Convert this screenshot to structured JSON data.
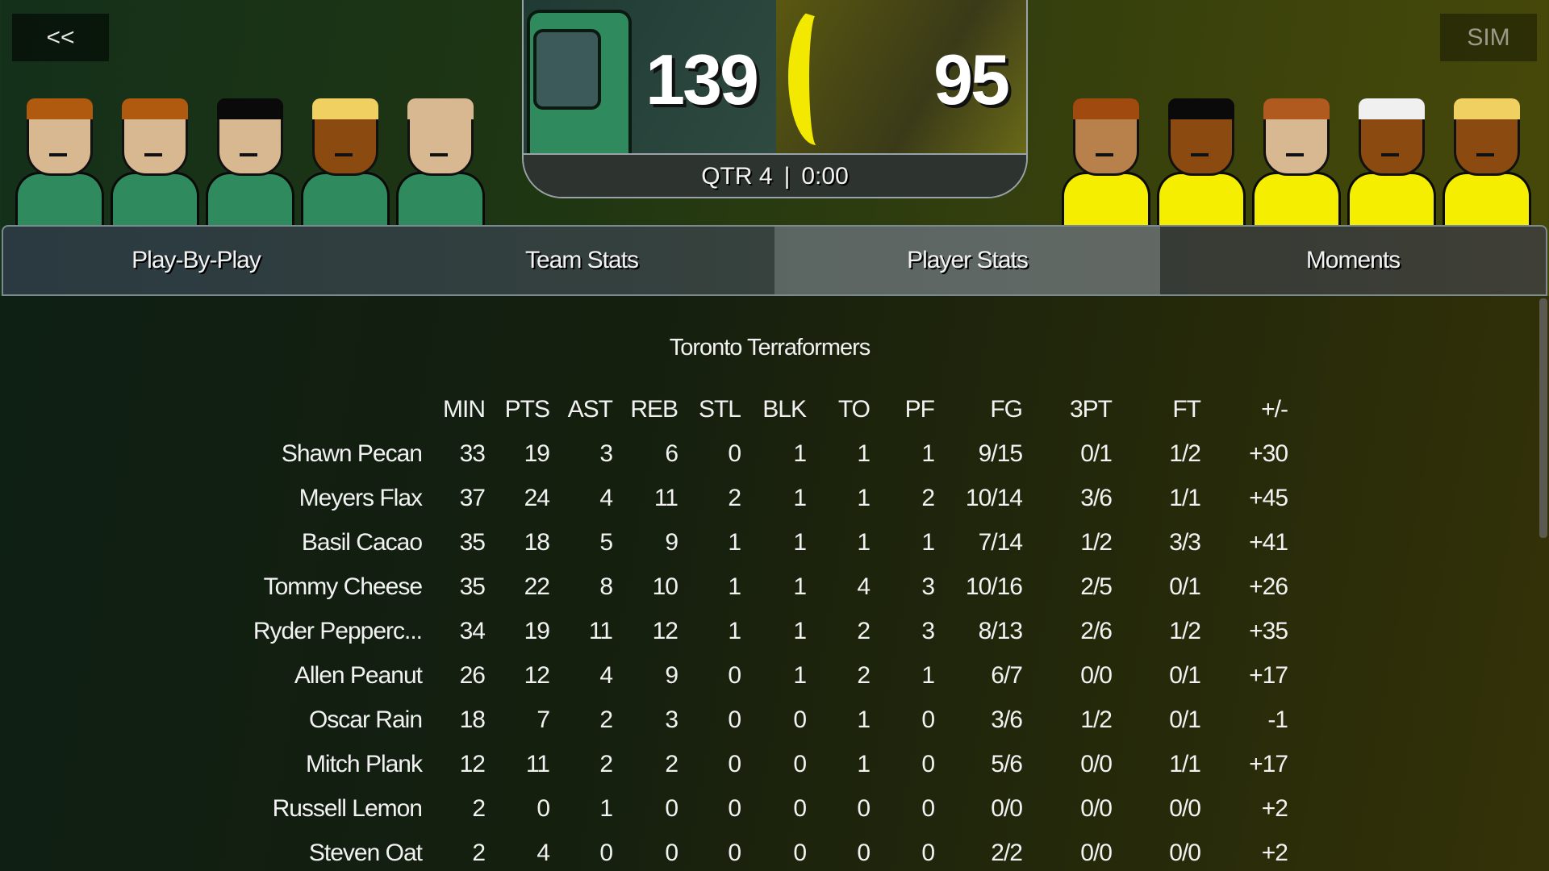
{
  "nav": {
    "back_label": "<<",
    "sim_label": "SIM"
  },
  "scoreboard": {
    "home_score": "139",
    "away_score": "95",
    "period": "QTR 4",
    "clock": "0:00",
    "separator": "|"
  },
  "tabs": [
    {
      "label": "Play-By-Play"
    },
    {
      "label": "Team Stats"
    },
    {
      "label": "Player Stats",
      "active": true
    },
    {
      "label": "Moments"
    }
  ],
  "colors": {
    "home_jersey": "#2f8a5e",
    "away_jersey": "#f5ee00"
  },
  "home_players": [
    {
      "skin": "#d8b890",
      "hair": "#b05a10"
    },
    {
      "skin": "#d8b890",
      "hair": "#b05a10"
    },
    {
      "skin": "#d8b890",
      "hair": "#0a0a0a"
    },
    {
      "skin": "#8a4a10",
      "hair": "#f0d060"
    },
    {
      "skin": "#d8b890",
      "hair": "#d8b890"
    }
  ],
  "away_players": [
    {
      "skin": "#b8804a",
      "hair": "#a04a10"
    },
    {
      "skin": "#8a4a10",
      "hair": "#0a0a0a"
    },
    {
      "skin": "#d8b890",
      "hair": "#b05a20"
    },
    {
      "skin": "#8a4a10",
      "hair": "#f0f0f0"
    },
    {
      "skin": "#8a4a10",
      "hair": "#f0d060"
    }
  ],
  "stats": {
    "team_name": "Toronto Terraformers",
    "columns": [
      "MIN",
      "PTS",
      "AST",
      "REB",
      "STL",
      "BLK",
      "TO",
      "PF",
      "FG",
      "3PT",
      "FT",
      "+/-"
    ],
    "rows": [
      {
        "name": "Shawn Pecan",
        "v": [
          "33",
          "19",
          "3",
          "6",
          "0",
          "1",
          "1",
          "1",
          "9/15",
          "0/1",
          "1/2",
          "+30"
        ]
      },
      {
        "name": "Meyers Flax",
        "v": [
          "37",
          "24",
          "4",
          "11",
          "2",
          "1",
          "1",
          "2",
          "10/14",
          "3/6",
          "1/1",
          "+45"
        ]
      },
      {
        "name": "Basil Cacao",
        "v": [
          "35",
          "18",
          "5",
          "9",
          "1",
          "1",
          "1",
          "1",
          "7/14",
          "1/2",
          "3/3",
          "+41"
        ]
      },
      {
        "name": "Tommy Cheese",
        "v": [
          "35",
          "22",
          "8",
          "10",
          "1",
          "1",
          "4",
          "3",
          "10/16",
          "2/5",
          "0/1",
          "+26"
        ]
      },
      {
        "name": "Ryder Pepperc...",
        "v": [
          "34",
          "19",
          "11",
          "12",
          "1",
          "1",
          "2",
          "3",
          "8/13",
          "2/6",
          "1/2",
          "+35"
        ]
      },
      {
        "name": "Allen Peanut",
        "v": [
          "26",
          "12",
          "4",
          "9",
          "0",
          "1",
          "2",
          "1",
          "6/7",
          "0/0",
          "0/1",
          "+17"
        ]
      },
      {
        "name": "Oscar Rain",
        "v": [
          "18",
          "7",
          "2",
          "3",
          "0",
          "0",
          "1",
          "0",
          "3/6",
          "1/2",
          "0/1",
          "-1"
        ]
      },
      {
        "name": "Mitch Plank",
        "v": [
          "12",
          "11",
          "2",
          "2",
          "0",
          "0",
          "1",
          "0",
          "5/6",
          "0/0",
          "1/1",
          "+17"
        ]
      },
      {
        "name": "Russell Lemon",
        "v": [
          "2",
          "0",
          "1",
          "0",
          "0",
          "0",
          "0",
          "0",
          "0/0",
          "0/0",
          "0/0",
          "+2"
        ]
      },
      {
        "name": "Steven Oat",
        "v": [
          "2",
          "4",
          "0",
          "0",
          "0",
          "0",
          "0",
          "0",
          "2/2",
          "0/0",
          "0/0",
          "+2"
        ]
      }
    ]
  }
}
